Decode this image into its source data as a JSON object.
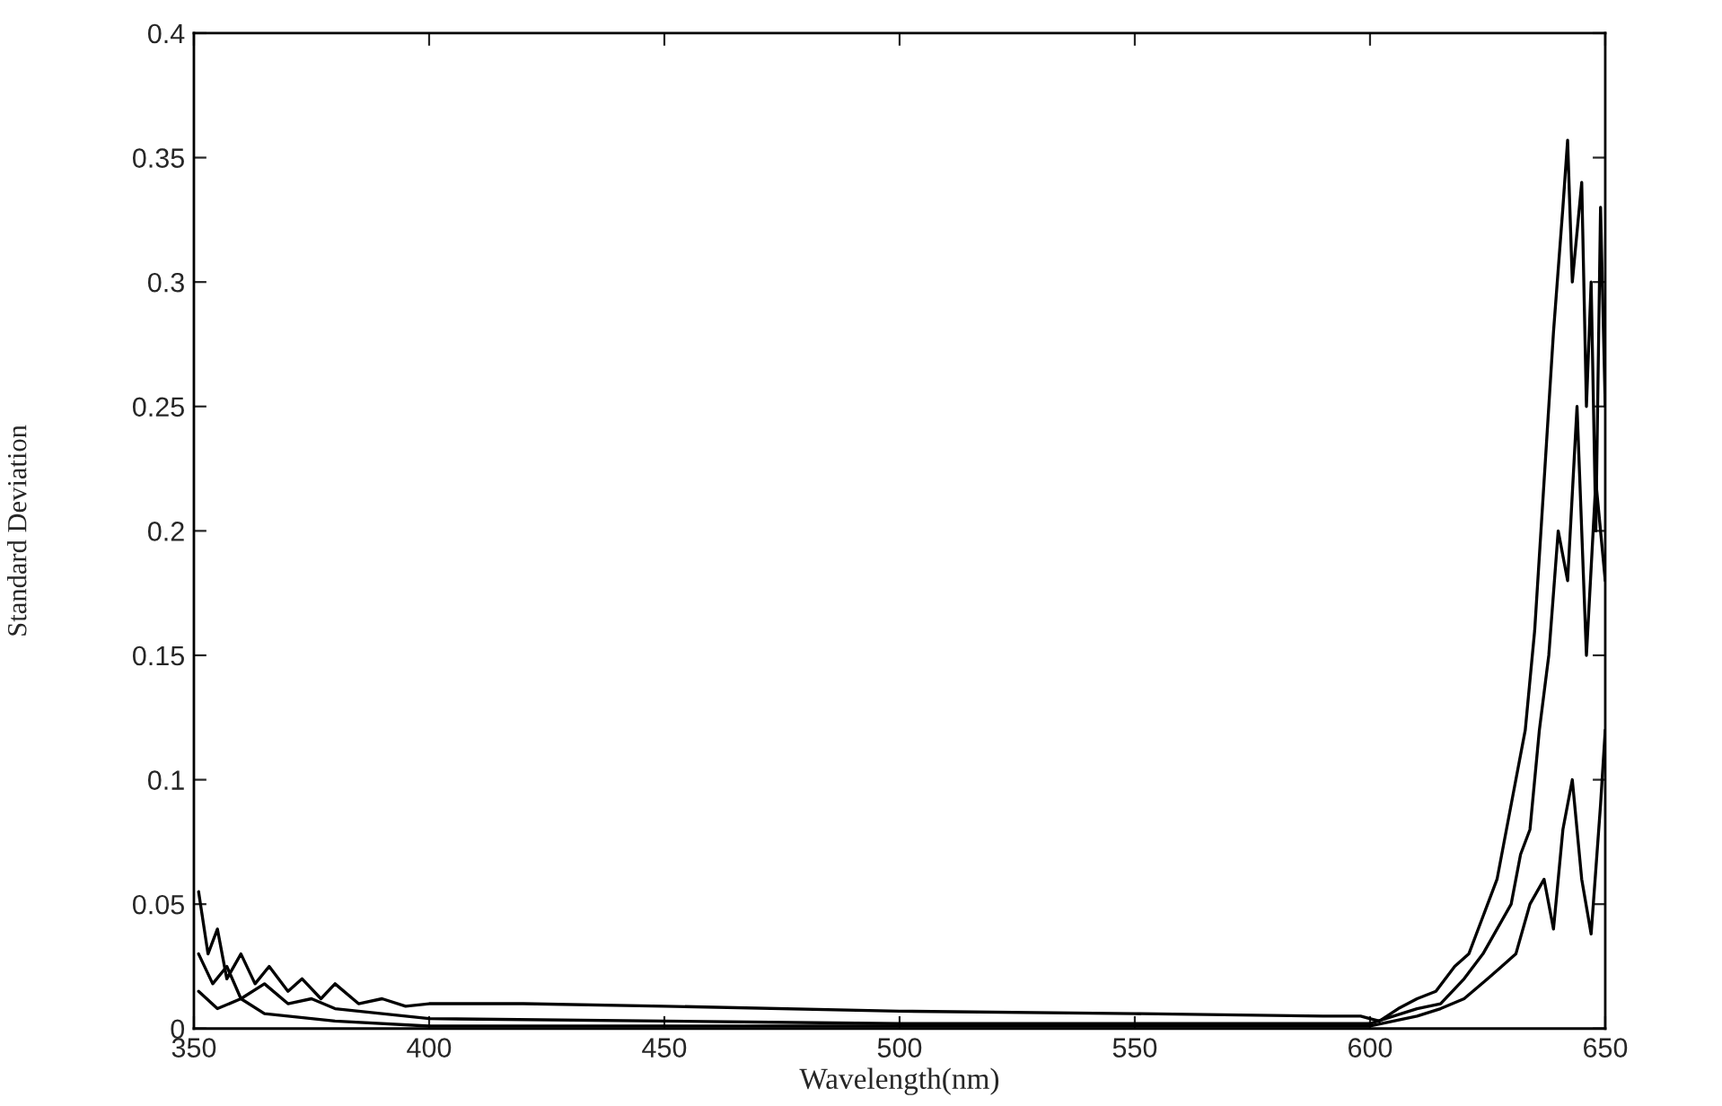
{
  "chart_data": {
    "type": "line",
    "xlabel": "Wavelength(nm)",
    "ylabel": "Standard Deviation",
    "xlim": [
      350,
      650
    ],
    "ylim": [
      0,
      0.4
    ],
    "xticks": [
      350,
      400,
      450,
      500,
      550,
      600,
      650
    ],
    "yticks": [
      0,
      0.05,
      0.1,
      0.15,
      0.2,
      0.25,
      0.3,
      0.35,
      0.4
    ],
    "grid": false,
    "marker": "none",
    "line_style": "solid",
    "series": [
      {
        "color": "#000000",
        "x": [
          351,
          353,
          355,
          357,
          360,
          363,
          366,
          370,
          373,
          377,
          380,
          385,
          390,
          395,
          400,
          420,
          450,
          500,
          550,
          590,
          598,
          602,
          606,
          610,
          614,
          618,
          621,
          624,
          627,
          629,
          631,
          633,
          635,
          637,
          639,
          641,
          642,
          643,
          645,
          646,
          647,
          648,
          649,
          650
        ],
        "values": [
          0.055,
          0.03,
          0.04,
          0.02,
          0.03,
          0.018,
          0.025,
          0.015,
          0.02,
          0.012,
          0.018,
          0.01,
          0.012,
          0.009,
          0.01,
          0.01,
          0.009,
          0.007,
          0.006,
          0.005,
          0.005,
          0.003,
          0.008,
          0.012,
          0.015,
          0.025,
          0.03,
          0.045,
          0.06,
          0.08,
          0.1,
          0.12,
          0.16,
          0.22,
          0.28,
          0.33,
          0.357,
          0.3,
          0.34,
          0.25,
          0.3,
          0.2,
          0.33,
          0.25
        ]
      },
      {
        "color": "#000000",
        "x": [
          351,
          354,
          357,
          360,
          365,
          370,
          375,
          380,
          390,
          400,
          450,
          500,
          550,
          600,
          605,
          610,
          615,
          620,
          624,
          627,
          630,
          632,
          634,
          636,
          638,
          640,
          642,
          644,
          646,
          648,
          650
        ],
        "values": [
          0.03,
          0.018,
          0.025,
          0.012,
          0.018,
          0.01,
          0.012,
          0.008,
          0.006,
          0.004,
          0.003,
          0.002,
          0.002,
          0.002,
          0.005,
          0.008,
          0.01,
          0.02,
          0.03,
          0.04,
          0.05,
          0.07,
          0.08,
          0.12,
          0.15,
          0.2,
          0.18,
          0.25,
          0.15,
          0.22,
          0.18
        ]
      },
      {
        "color": "#000000",
        "x": [
          351,
          355,
          360,
          365,
          370,
          380,
          400,
          450,
          500,
          600,
          605,
          610,
          615,
          620,
          625,
          628,
          631,
          634,
          637,
          639,
          641,
          643,
          645,
          647,
          649,
          650
        ],
        "values": [
          0.015,
          0.008,
          0.012,
          0.006,
          0.005,
          0.003,
          0.001,
          0.001,
          0.001,
          0.001,
          0.003,
          0.005,
          0.008,
          0.012,
          0.02,
          0.025,
          0.03,
          0.05,
          0.06,
          0.04,
          0.08,
          0.1,
          0.06,
          0.038,
          0.09,
          0.12
        ]
      }
    ]
  }
}
